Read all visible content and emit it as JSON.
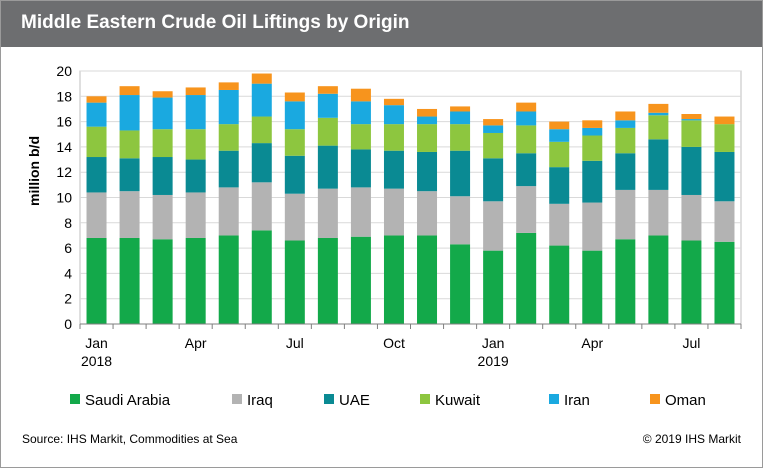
{
  "title": "Middle Eastern Crude Oil Liftings by Origin",
  "source": "Source: IHS Markit, Commodities at Sea",
  "copyright": "© 2019 IHS Markit",
  "chart_data": {
    "type": "bar",
    "stacked": true,
    "ylabel": "million b/d",
    "ylim": [
      0,
      20
    ],
    "yticks": [
      0,
      2,
      4,
      6,
      8,
      10,
      12,
      14,
      16,
      18,
      20
    ],
    "grid": "horizontal",
    "legend": "bottom",
    "categories": [
      "Jan 2018",
      "Feb 2018",
      "Mar 2018",
      "Apr 2018",
      "May 2018",
      "Jun 2018",
      "Jul 2018",
      "Aug 2018",
      "Sep 2018",
      "Oct 2018",
      "Nov 2018",
      "Dec 2018",
      "Jan 2019",
      "Feb 2019",
      "Mar 2019",
      "Apr 2019",
      "May 2019",
      "Jun 2019",
      "Jul 2019",
      "Aug 2019"
    ],
    "xtick_labels": [
      {
        "index": 0,
        "lines": [
          "Jan",
          "2018"
        ]
      },
      {
        "index": 3,
        "lines": [
          "Apr"
        ]
      },
      {
        "index": 6,
        "lines": [
          "Jul"
        ]
      },
      {
        "index": 9,
        "lines": [
          "Oct"
        ]
      },
      {
        "index": 12,
        "lines": [
          "Jan",
          "2019"
        ]
      },
      {
        "index": 15,
        "lines": [
          "Apr"
        ]
      },
      {
        "index": 18,
        "lines": [
          "Jul"
        ]
      }
    ],
    "series": [
      {
        "name": "Saudi Arabia",
        "color": "#13a94a",
        "values": [
          6.8,
          6.8,
          6.7,
          6.8,
          7.0,
          7.4,
          6.6,
          6.8,
          6.9,
          7.0,
          7.0,
          6.3,
          5.8,
          7.2,
          6.2,
          5.8,
          6.7,
          7.0,
          6.6,
          6.5
        ]
      },
      {
        "name": "Iraq",
        "color": "#b3b3b3",
        "values": [
          3.6,
          3.7,
          3.5,
          3.6,
          3.8,
          3.8,
          3.7,
          3.9,
          3.9,
          3.7,
          3.5,
          3.8,
          3.9,
          3.7,
          3.3,
          3.8,
          3.9,
          3.6,
          3.6,
          3.2
        ]
      },
      {
        "name": "UAE",
        "color": "#0a8a93",
        "values": [
          2.8,
          2.6,
          3.0,
          2.6,
          2.9,
          3.1,
          3.0,
          3.4,
          3.0,
          3.0,
          3.1,
          3.6,
          3.4,
          2.6,
          2.9,
          3.3,
          2.9,
          4.0,
          3.8,
          3.9
        ]
      },
      {
        "name": "Kuwait",
        "color": "#8dc63f",
        "values": [
          2.4,
          2.2,
          2.2,
          2.4,
          2.1,
          2.1,
          2.1,
          2.2,
          2.0,
          2.1,
          2.2,
          2.1,
          2.0,
          2.2,
          2.0,
          2.0,
          2.0,
          1.9,
          2.1,
          2.2
        ]
      },
      {
        "name": "Iran",
        "color": "#1aa9e0",
        "values": [
          1.9,
          2.8,
          2.5,
          2.7,
          2.7,
          2.6,
          2.2,
          1.9,
          1.8,
          1.5,
          0.6,
          1.0,
          0.6,
          1.1,
          1.0,
          0.6,
          0.6,
          0.2,
          0.1,
          0.0
        ]
      },
      {
        "name": "Oman",
        "color": "#f7941d",
        "values": [
          0.5,
          0.7,
          0.5,
          0.6,
          0.6,
          0.8,
          0.7,
          0.6,
          1.0,
          0.5,
          0.6,
          0.4,
          0.5,
          0.7,
          0.6,
          0.6,
          0.7,
          0.7,
          0.4,
          0.6
        ]
      }
    ]
  }
}
